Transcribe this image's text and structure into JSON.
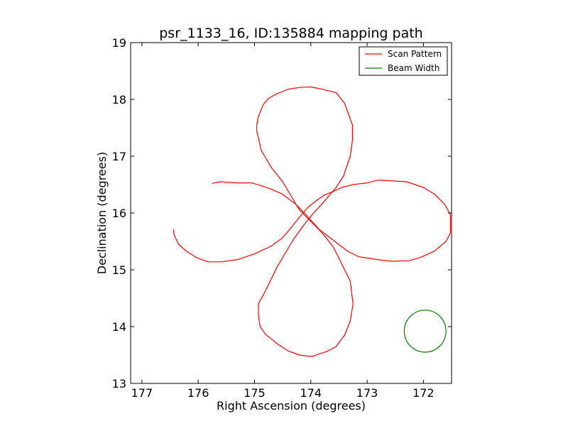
{
  "chart_data": {
    "type": "line",
    "title": "psr_1133_16, ID:135884 mapping path",
    "xlabel": "Right Ascension (degrees)",
    "ylabel": "Declination (degrees)",
    "xlim": [
      177.2,
      171.5
    ],
    "ylim": [
      13,
      19
    ],
    "xticks": [
      177,
      176,
      175,
      174,
      173,
      172
    ],
    "xtick_labels": [
      "177",
      "176",
      "175",
      "174",
      "173",
      "172"
    ],
    "yticks": [
      13,
      14,
      15,
      16,
      17,
      18,
      19
    ],
    "ytick_labels": [
      "13",
      "14",
      "15",
      "16",
      "17",
      "18",
      "19"
    ],
    "grid": false,
    "legend_position": "top-right",
    "series": [
      {
        "name": "Scan Pattern",
        "color": "#ff0000",
        "style": "line",
        "x": [
          175.75,
          175.62,
          175.3,
          175.05,
          174.88,
          174.7,
          174.5,
          174.25,
          174.05,
          173.85,
          173.6,
          173.35,
          173.15,
          172.95,
          172.75,
          172.55,
          172.25,
          172.05,
          171.8,
          171.6,
          171.52,
          171.52,
          171.62,
          171.8,
          172.0,
          172.3,
          172.8,
          173.0,
          173.25,
          173.45,
          173.6,
          173.75,
          173.9,
          174.05,
          174.2,
          174.4,
          174.52,
          174.7,
          175.0,
          175.3,
          175.6,
          175.82,
          176.02,
          176.2,
          176.35,
          176.43,
          176.44
        ],
        "y": [
          16.52,
          16.55,
          16.53,
          16.53,
          16.48,
          16.42,
          16.33,
          16.14,
          15.93,
          15.71,
          15.52,
          15.33,
          15.23,
          15.2,
          15.17,
          15.15,
          15.16,
          15.22,
          15.33,
          15.5,
          15.65,
          15.97,
          16.15,
          16.33,
          16.45,
          16.55,
          16.58,
          16.53,
          16.5,
          16.45,
          16.38,
          16.32,
          16.22,
          16.1,
          15.93,
          15.68,
          15.55,
          15.42,
          15.28,
          15.18,
          15.14,
          15.14,
          15.21,
          15.32,
          15.45,
          15.62,
          15.71
        ]
      },
      {
        "name": "Scan Pattern",
        "color": "#ff0000",
        "style": "line",
        "x": [
          174.35,
          174.5,
          174.7,
          174.88,
          174.96,
          174.96,
          174.93,
          174.85,
          174.75,
          174.6,
          174.4,
          174.2,
          174.0,
          173.8,
          173.55,
          173.4,
          173.26,
          173.26,
          173.3,
          173.42,
          173.55,
          173.68,
          173.8,
          173.95,
          174.1,
          174.3,
          174.45,
          174.6,
          174.77,
          174.93,
          174.93,
          174.9,
          174.8,
          174.6,
          174.4,
          174.2,
          174.05,
          173.95,
          173.9,
          173.85,
          173.72,
          173.55,
          173.4,
          173.3,
          173.25,
          173.3,
          173.45,
          173.6,
          173.8,
          174.0,
          174.2,
          174.35
        ],
        "y": [
          16.3,
          16.55,
          16.8,
          17.1,
          17.45,
          17.55,
          17.7,
          17.9,
          18.02,
          18.1,
          18.18,
          18.21,
          18.22,
          18.18,
          18.12,
          17.93,
          17.55,
          17.28,
          17.0,
          16.65,
          16.45,
          16.3,
          16.16,
          16.0,
          15.82,
          15.55,
          15.3,
          15.05,
          14.7,
          14.4,
          14.2,
          14.0,
          13.86,
          13.7,
          13.57,
          13.5,
          13.48,
          13.48,
          13.5,
          13.52,
          13.56,
          13.65,
          13.85,
          14.1,
          14.4,
          14.8,
          15.1,
          15.4,
          15.65,
          15.85,
          16.05,
          16.3
        ]
      },
      {
        "name": "Beam Width",
        "color": "#008000",
        "style": "circle",
        "center": [
          171.97,
          13.92
        ],
        "radius": 0.37
      }
    ],
    "legend": [
      {
        "label": "Scan Pattern",
        "color": "#ff0000"
      },
      {
        "label": "Beam Width",
        "color": "#008000"
      }
    ]
  }
}
